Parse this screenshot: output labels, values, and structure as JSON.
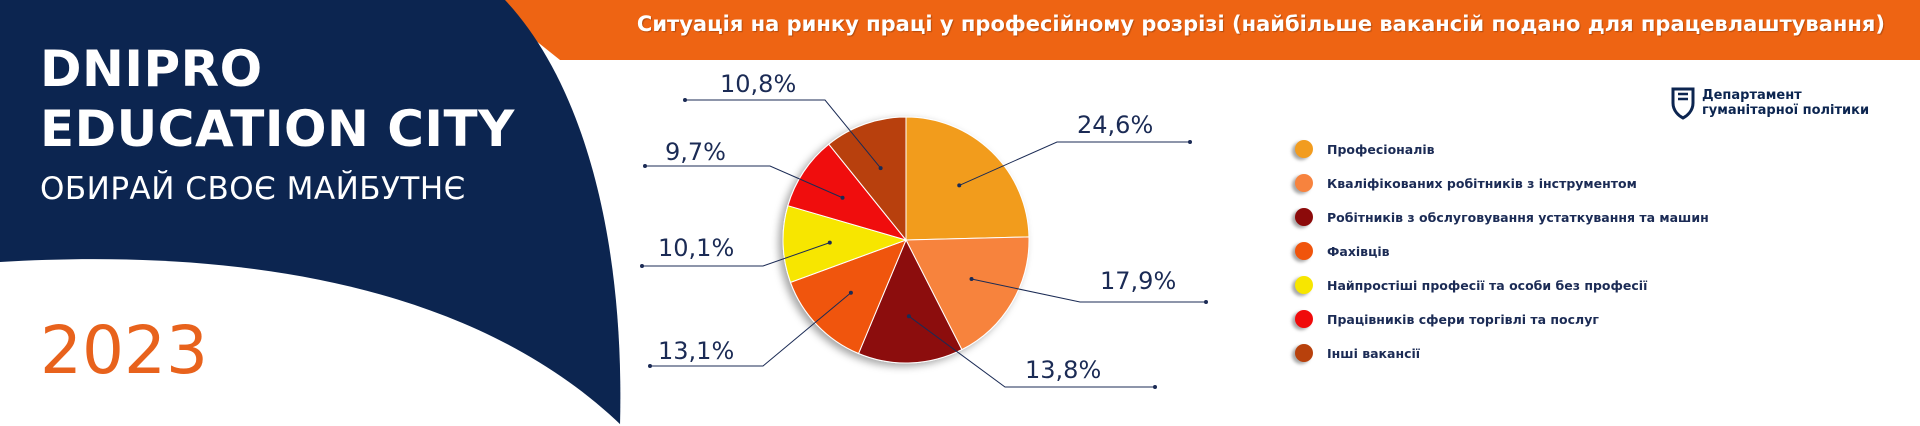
{
  "brand": {
    "line1": "DNIPRO",
    "line2": "EDUCATION CITY",
    "tagline": "ОБИРАЙ СВОЄ МАЙБУТНЄ",
    "year": "2023"
  },
  "department": {
    "line1": "Департамент",
    "line2": "гуманітарної політики"
  },
  "colors": {
    "navy": "#0c2550",
    "orange": "#e8621c"
  },
  "chart_data": {
    "type": "pie",
    "title": "Ситуація на ринку праці у професійному розрізі (найбільше вакансій подано для працевлаштування)",
    "legend_position": "right",
    "slices": [
      {
        "name": "Професіоналів",
        "value": 24.6,
        "label": "24,6%",
        "color": "#f29c1f"
      },
      {
        "name": "Кваліфікованих робітників з інструментом",
        "value": 17.9,
        "label": "17,9%",
        "color": "#f7833e"
      },
      {
        "name": "Робітників з обслуговування устаткування та машин",
        "value": 13.8,
        "label": "13,8%",
        "color": "#8c0a0a"
      },
      {
        "name": "Фахівців",
        "value": 13.1,
        "label": "13,1%",
        "color": "#f0540c"
      },
      {
        "name": "Найпростіші професії та особи без професії",
        "value": 10.1,
        "label": "10,1%",
        "color": "#f7e600"
      },
      {
        "name": "Працівників сфери торгівлі та послуг",
        "value": 9.7,
        "label": "9,7%",
        "color": "#f00a0a"
      },
      {
        "name": "Інші вакансії",
        "value": 10.8,
        "label": "10,8%",
        "color": "#b8410c"
      }
    ]
  }
}
